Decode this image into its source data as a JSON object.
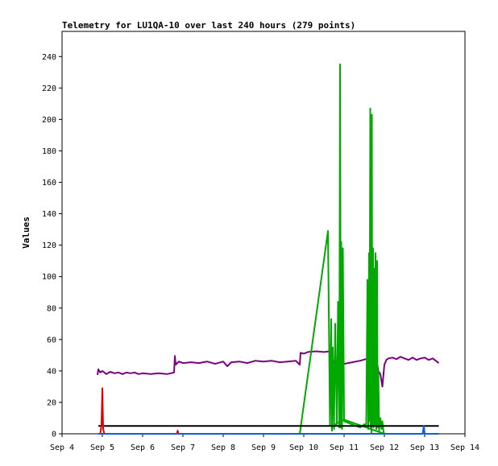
{
  "chart_data": {
    "type": "line",
    "title": "Telemetry for LU1QA-10 over last 240 hours (279 points)",
    "xlabel": "",
    "ylabel": "Values",
    "x_ticks": [
      "Sep 4",
      "Sep 5",
      "Sep 6",
      "Sep 7",
      "Sep 8",
      "Sep 9",
      "Sep 10",
      "Sep 11",
      "Sep 12",
      "Sep 13",
      "Sep 14"
    ],
    "xlim": [
      "Sep 4",
      "Sep 14"
    ],
    "y_ticks": [
      0,
      20,
      40,
      60,
      80,
      100,
      120,
      140,
      160,
      180,
      200,
      220,
      240
    ],
    "ylim": [
      0,
      256
    ],
    "grid": false,
    "legend": "none",
    "series": [
      {
        "color": "#7a0080",
        "x": [
          4.88,
          4.9,
          4.95,
          5.0,
          5.1,
          5.2,
          5.3,
          5.4,
          5.5,
          5.6,
          5.7,
          5.8,
          5.9,
          6.0,
          6.2,
          6.4,
          6.6,
          6.7,
          6.78,
          6.8,
          6.82,
          6.9,
          7.0,
          7.2,
          7.4,
          7.6,
          7.8,
          8.0,
          8.1,
          8.2,
          8.4,
          8.6,
          8.8,
          9.0,
          9.2,
          9.4,
          9.6,
          9.8,
          9.9,
          9.92,
          10.0,
          10.1,
          10.3,
          10.5,
          10.65,
          10.7,
          10.8,
          10.9,
          11.0,
          11.2,
          11.4,
          11.6,
          11.7,
          11.75,
          11.8,
          11.85,
          11.9,
          11.95,
          12.0,
          12.05,
          12.1,
          12.2,
          12.3,
          12.4,
          12.5,
          12.6,
          12.7,
          12.8,
          12.9,
          13.0,
          13.1,
          13.2,
          13.35
        ],
        "values": [
          37.5,
          41,
          39,
          40,
          38,
          39.5,
          38.5,
          39,
          38,
          39,
          38.5,
          39,
          38,
          38.5,
          38,
          38.5,
          38,
          38.5,
          39,
          49.5,
          44,
          46,
          45,
          45.5,
          45,
          46,
          44.5,
          46,
          43,
          45.5,
          46,
          45,
          46.5,
          46,
          46.5,
          45.5,
          46,
          46.5,
          44,
          51.5,
          51,
          52,
          52.5,
          52,
          52.5,
          48,
          43,
          44,
          44.5,
          45.5,
          46.5,
          48,
          50,
          52,
          48,
          40,
          38,
          30,
          44,
          47,
          48,
          48.5,
          47.5,
          49,
          48,
          47,
          48.5,
          47,
          48,
          48.5,
          47,
          48,
          45
        ]
      },
      {
        "color": "#00a800",
        "x": [
          9.9,
          10.6,
          10.65,
          10.68,
          10.7,
          10.72,
          10.75,
          10.78,
          10.82,
          10.85,
          10.88,
          10.9,
          10.92,
          10.93,
          10.95,
          10.97,
          11.0,
          11.2,
          11.4,
          11.5,
          11.55,
          11.58,
          11.6,
          11.62,
          11.63,
          11.65,
          11.66,
          11.67,
          11.68,
          11.69,
          11.7,
          11.72,
          11.73,
          11.75,
          11.77,
          11.78,
          11.8,
          11.82,
          11.83,
          11.85,
          11.87,
          11.9,
          11.93,
          11.95,
          11.98,
          12.0,
          11.0,
          10.7
        ],
        "values": [
          0,
          129,
          5,
          73,
          2,
          55,
          3,
          70,
          6,
          84,
          4,
          235,
          4,
          122,
          3,
          118,
          8,
          6,
          4,
          6,
          6,
          98,
          3,
          115,
          8,
          207,
          4,
          196,
          0,
          203,
          5,
          118,
          4,
          105,
          6,
          115,
          3,
          110,
          4,
          40,
          2,
          10,
          3,
          8,
          1,
          0,
          9,
          5
        ]
      },
      {
        "color": "#000000",
        "x": [
          4.9,
          13.35
        ],
        "values": [
          5,
          5
        ]
      },
      {
        "color": "#e00000",
        "x": [
          4.95,
          4.98,
          5.0,
          5.02,
          5.05,
          5.1,
          6.85,
          6.87,
          6.89
        ],
        "values": [
          0,
          6,
          29,
          3,
          0,
          0,
          0,
          2,
          0
        ]
      },
      {
        "color": "#1060d0",
        "x": [
          4.9,
          12.95,
          12.98,
          13.0,
          13.35
        ],
        "values": [
          0,
          0,
          5,
          0,
          0
        ]
      }
    ]
  }
}
